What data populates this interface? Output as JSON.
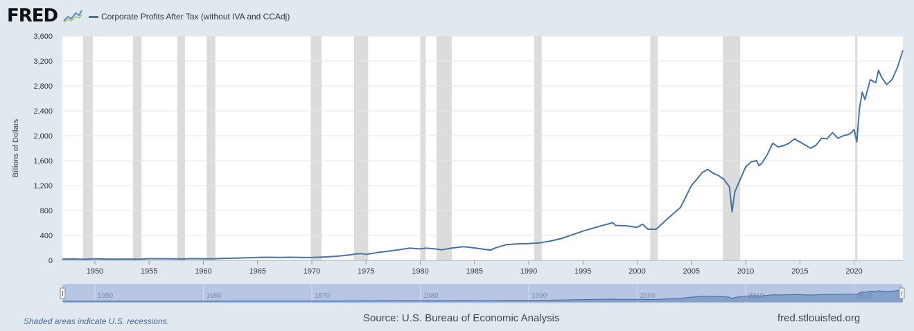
{
  "header": {
    "logo_text": "FRED",
    "legend_label": "Corporate Profits After Tax (without IVA and CCAdj)"
  },
  "footer": {
    "recession_note": "Shaded areas indicate U.S. recessions.",
    "source": "Source: U.S. Bureau of Economic Analysis",
    "site": "fred.stlouisfed.org"
  },
  "colors": {
    "series": "#4572a7",
    "recession": "#dcdcdc",
    "navigator_fill": "#b7c7e3",
    "page_background": "#e1e9f0"
  },
  "chart_data": {
    "type": "line",
    "title": "",
    "xlabel": "",
    "ylabel": "Billions of Dollars",
    "xlim": [
      1947.0,
      2024.5
    ],
    "ylim": [
      0,
      3600
    ],
    "y_ticks": [
      0,
      400,
      800,
      1200,
      1600,
      2000,
      2400,
      2800,
      3200,
      3600
    ],
    "y_tick_labels": [
      "0",
      "400",
      "800",
      "1,200",
      "1,600",
      "2,000",
      "2,400",
      "2,800",
      "3,200",
      "3,600"
    ],
    "x_ticks": [
      1950,
      1955,
      1960,
      1965,
      1970,
      1975,
      1980,
      1985,
      1990,
      1995,
      2000,
      2005,
      2010,
      2015,
      2020
    ],
    "navigator_ticks": [
      1950,
      1960,
      1970,
      1980,
      1990,
      2000,
      2010,
      2020
    ],
    "grid": true,
    "recessions": [
      [
        1948.9,
        1949.8
      ],
      [
        1953.5,
        1954.3
      ],
      [
        1957.6,
        1958.3
      ],
      [
        1960.3,
        1961.1
      ],
      [
        1969.9,
        1970.9
      ],
      [
        1973.9,
        1975.2
      ],
      [
        1980.0,
        1980.5
      ],
      [
        1981.5,
        1982.9
      ],
      [
        1990.5,
        1991.2
      ],
      [
        2001.2,
        2001.9
      ],
      [
        2007.9,
        2009.5
      ],
      [
        2020.1,
        2020.3
      ]
    ],
    "series": [
      {
        "name": "Corporate Profits After Tax (without IVA and CCAdj)",
        "x": [
          1947,
          1948,
          1949,
          1950,
          1951,
          1952,
          1953,
          1954,
          1955,
          1956,
          1957,
          1958,
          1959,
          1960,
          1961,
          1962,
          1963,
          1964,
          1965,
          1966,
          1967,
          1968,
          1969,
          1970,
          1971,
          1972,
          1973,
          1974,
          1974.5,
          1975,
          1976,
          1977,
          1978,
          1979,
          1980,
          1980.5,
          1981,
          1982,
          1983,
          1984,
          1985,
          1986,
          1986.5,
          1987,
          1988,
          1989,
          1990,
          1991,
          1992,
          1993,
          1994,
          1995,
          1996,
          1997,
          1997.75,
          1998,
          1999,
          2000,
          2000.5,
          2001,
          2001.75,
          2002,
          2003,
          2004,
          2005,
          2005.5,
          2006,
          2006.5,
          2007,
          2007.5,
          2008,
          2008.5,
          2008.75,
          2009,
          2009.5,
          2010,
          2010.5,
          2011,
          2011.25,
          2011.5,
          2012,
          2012.5,
          2013,
          2013.5,
          2014,
          2014.5,
          2015,
          2015.5,
          2016,
          2016.5,
          2017,
          2017.5,
          2018,
          2018.5,
          2019,
          2019.5,
          2019.75,
          2020,
          2020.25,
          2020.5,
          2020.75,
          2021,
          2021.5,
          2022,
          2022.25,
          2022.5,
          2023,
          2023.5,
          2024,
          2024.5
        ],
        "values": [
          20,
          22,
          18,
          25,
          21,
          20,
          21,
          20,
          27,
          27,
          26,
          22,
          28,
          26,
          27,
          32,
          36,
          41,
          48,
          50,
          48,
          50,
          47,
          45,
          52,
          62,
          78,
          100,
          110,
          95,
          125,
          145,
          170,
          195,
          185,
          195,
          190,
          170,
          200,
          220,
          200,
          175,
          165,
          205,
          255,
          265,
          270,
          280,
          310,
          350,
          410,
          470,
          520,
          570,
          605,
          560,
          555,
          530,
          580,
          500,
          500,
          540,
          700,
          850,
          1200,
          1300,
          1410,
          1460,
          1400,
          1360,
          1300,
          1180,
          780,
          1100,
          1300,
          1500,
          1580,
          1600,
          1520,
          1560,
          1700,
          1880,
          1820,
          1840,
          1880,
          1950,
          1900,
          1850,
          1800,
          1850,
          1960,
          1950,
          2050,
          1960,
          2000,
          2020,
          2050,
          2100,
          1900,
          2450,
          2700,
          2580,
          2900,
          2850,
          3050,
          2950,
          2820,
          2900,
          3100,
          3370
        ]
      }
    ]
  }
}
